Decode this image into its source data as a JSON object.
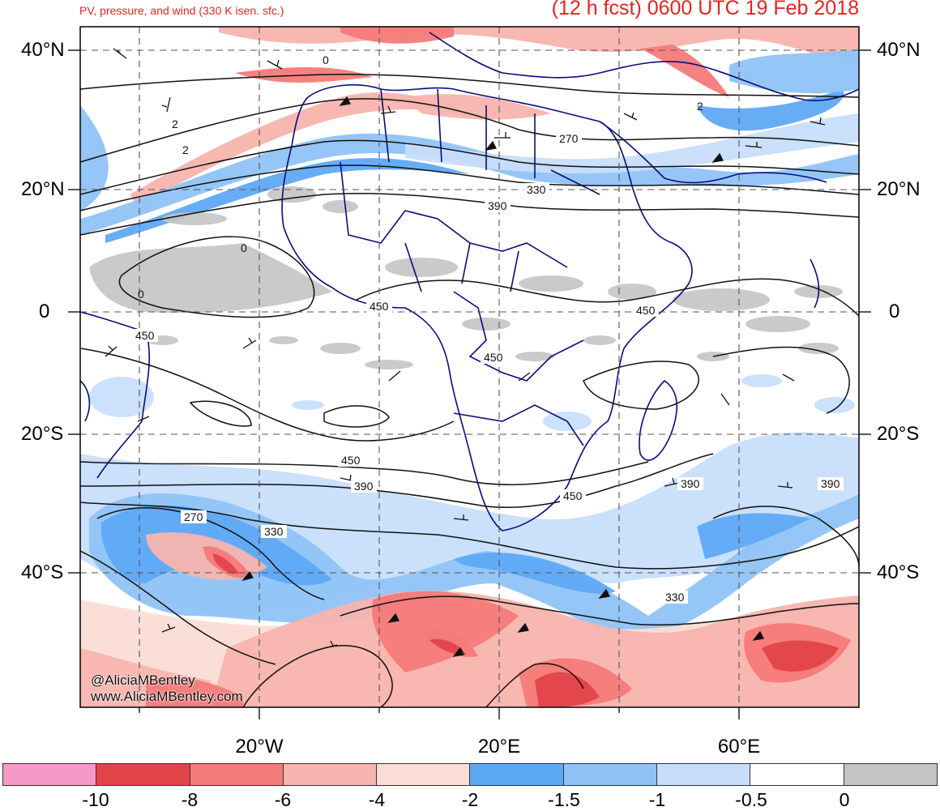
{
  "header": {
    "subtitle": "PV, pressure, and wind (330 K isen. sfc.)",
    "title": "(12 h fcst) 0600 UTC 19 Feb 2018"
  },
  "credits": {
    "twitter": "@AliciaMBentley",
    "website": "www.AliciaMBentley.com"
  },
  "map": {
    "lat_labels": [
      {
        "text": "40°N",
        "lat": 40
      },
      {
        "text": "20°N",
        "lat": 20
      },
      {
        "text": "0",
        "lat": 0
      },
      {
        "text": "20°S",
        "lat": -20
      },
      {
        "text": "40°S",
        "lat": -40
      }
    ],
    "lon_labels": [
      {
        "text": "20°W",
        "lon": -20
      },
      {
        "text": "20°E",
        "lon": 20
      },
      {
        "text": "60°E",
        "lon": 60
      }
    ],
    "contour_labels": [
      "270",
      "330",
      "390",
      "450",
      "2",
      "0"
    ],
    "land_line_color": "#0b0b7e",
    "contour_color": "#111111"
  },
  "colorbar": {
    "labels": [
      "-10",
      "-8",
      "-6",
      "-4",
      "-2",
      "-1.5",
      "-1",
      "-0.5",
      "0"
    ],
    "colors": [
      "#f59ac6",
      "#e2434a",
      "#f57a7a",
      "#f8b4ae",
      "#fcdcd6",
      "#5ea9f5",
      "#8fc3f7",
      "#c7defb",
      "#ffffff",
      "#c4c4c4"
    ]
  }
}
